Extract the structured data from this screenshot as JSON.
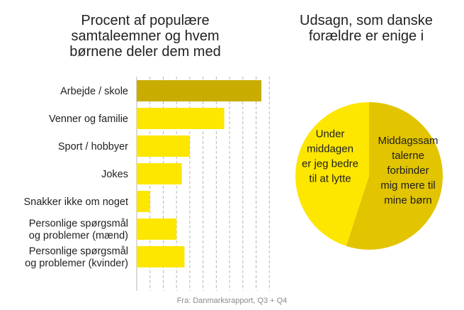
{
  "colors": {
    "bar_highlight": "#c8ad00",
    "bar": "#fde600",
    "pie_light": "#fde600",
    "pie_dark": "#e2c400",
    "grid": "#b5b5b5"
  },
  "chart_data": [
    {
      "type": "bar",
      "orientation": "horizontal",
      "title": "Procent af populære\nsamtaleemner og hvem\nbørnene deler dem med",
      "categories": [
        "Arbejde / skole",
        "Venner og familie",
        "Sport / hobbyer",
        "Jokes",
        "Snakker ikke om noget",
        "Personlige spørgsmål\nog problemer (mænd)",
        "Personlige spørgsmål\nog problemer (kvinder)"
      ],
      "values": [
        47,
        33,
        20,
        17,
        5,
        15,
        18
      ],
      "highlight_index": 0,
      "xlim": [
        0,
        50
      ],
      "grid": "vertical dashed",
      "xlabel": "",
      "ylabel": ""
    },
    {
      "type": "pie",
      "title": "Udsagn, som danske\nforældre er enige i",
      "slices": [
        {
          "label": "Under\nmiddagen\ner jeg bedre\ntil at lytte",
          "value": 45
        },
        {
          "label": "Middagssam\ntalerne\nforbinder\nmig mere til\nmine børn",
          "value": 55
        }
      ]
    }
  ],
  "source": "Fra: Danmarksrapport, Q3 + Q4"
}
